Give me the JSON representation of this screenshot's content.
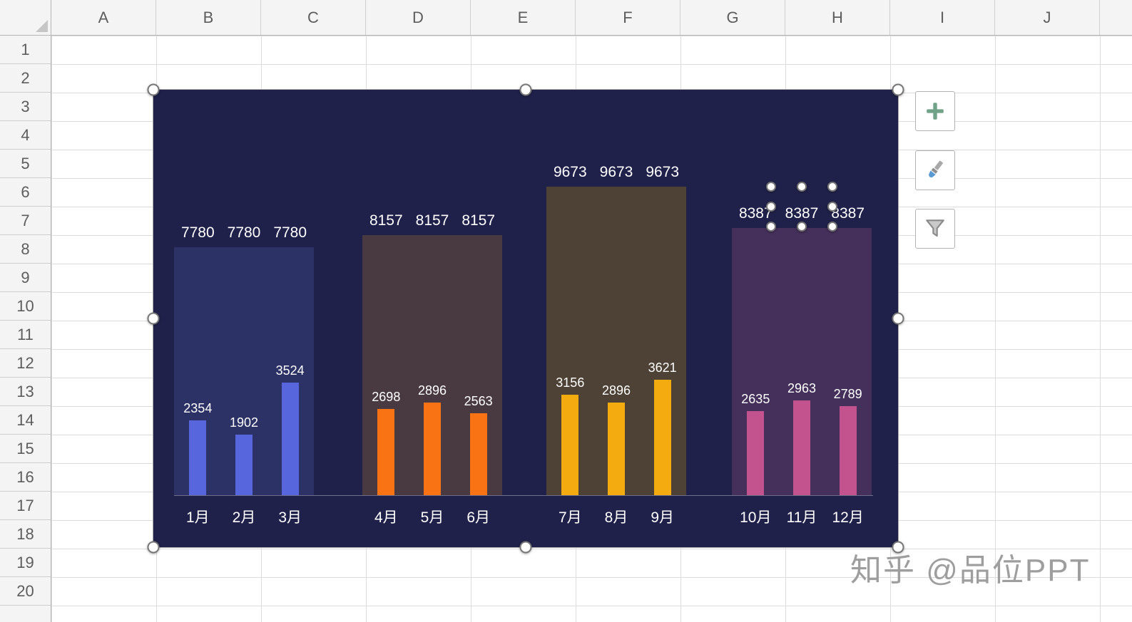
{
  "sheet": {
    "column_headers": [
      "A",
      "B",
      "C",
      "D",
      "E",
      "F",
      "G",
      "H",
      "I",
      "J"
    ],
    "row_headers": [
      "1",
      "2",
      "3",
      "4",
      "5",
      "6",
      "7",
      "8",
      "9",
      "10",
      "11",
      "12",
      "13",
      "14",
      "15",
      "16",
      "17",
      "18",
      "19",
      "20"
    ]
  },
  "chart_tools": {
    "buttons": [
      {
        "name": "chart-elements",
        "icon": "plus-icon",
        "color": "#6fa287"
      },
      {
        "name": "chart-styles",
        "icon": "paintbrush-icon",
        "color": "#5a9bd5"
      },
      {
        "name": "chart-filters",
        "icon": "funnel-icon",
        "color": "#8a8a8a"
      }
    ]
  },
  "watermark": "知乎 @品位PPT",
  "chart_data": {
    "type": "bar",
    "title": "",
    "categories": [
      "1月",
      "2月",
      "3月",
      "4月",
      "5月",
      "6月",
      "7月",
      "8月",
      "9月",
      "10月",
      "11月",
      "12月"
    ],
    "series": [
      {
        "name": "quarter-total-background",
        "values": [
          7780,
          7780,
          7780,
          8157,
          8157,
          8157,
          9673,
          9673,
          9673,
          8387,
          8387,
          8387
        ]
      },
      {
        "name": "monthly-value",
        "values": [
          2354,
          1902,
          3524,
          2698,
          2896,
          2563,
          3156,
          2896,
          3621,
          2635,
          2963,
          2789
        ]
      }
    ],
    "groups": [
      {
        "total": 7780,
        "months": [
          "1月",
          "2月",
          "3月"
        ],
        "values": [
          2354,
          1902,
          3524
        ],
        "bar_color": "#5766dd",
        "background_color": "#2c3266"
      },
      {
        "total": 8157,
        "months": [
          "4月",
          "5月",
          "6月"
        ],
        "values": [
          2698,
          2896,
          2563
        ],
        "bar_color": "#f97314",
        "background_color": "#493a41"
      },
      {
        "total": 9673,
        "months": [
          "7月",
          "8月",
          "9月"
        ],
        "values": [
          3156,
          2896,
          3621
        ],
        "bar_color": "#f3ab10",
        "background_color": "#4e4236"
      },
      {
        "total": 8387,
        "months": [
          "10月",
          "11月",
          "12月"
        ],
        "values": [
          2635,
          2963,
          2789
        ],
        "bar_color": "#c2538f",
        "background_color": "#44305a"
      }
    ],
    "ylim": [
      0,
      9673
    ],
    "plot_background": "#20214a",
    "legend": "none",
    "grid": "off",
    "data_labels": "white, outside end"
  }
}
